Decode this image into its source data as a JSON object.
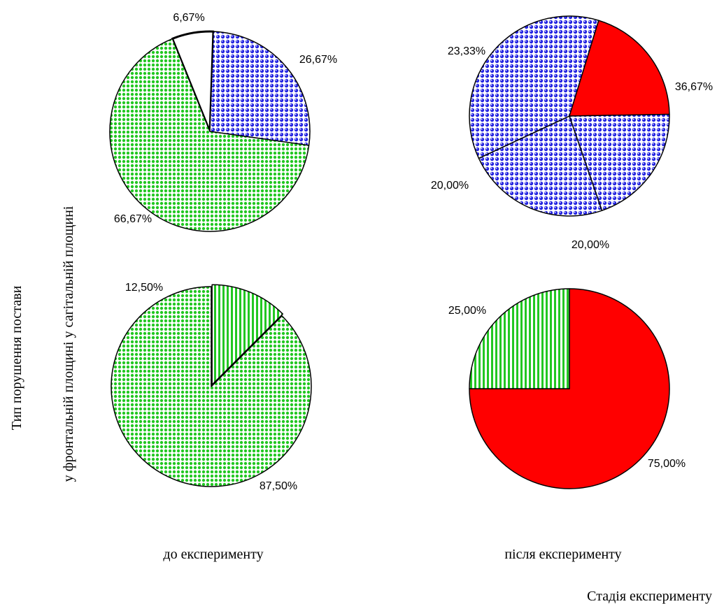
{
  "chart_data": {
    "type": "pie",
    "x_axis_label": "Стадія експерименту",
    "y_axis_labels": [
      "Тип порушення постави",
      "у фронтальній площині   у сагітальній площині"
    ],
    "stage_labels": [
      "до експерименту",
      "після експерименту"
    ],
    "patterns": {
      "green-dots": "#22c722",
      "blue-dots": "#2222e0",
      "red": "#ff0000",
      "green-stripes": "#22c722"
    },
    "charts": [
      {
        "name": "sagittal-before",
        "stage": "до експерименту",
        "plane": "у сагітальній площині",
        "slices": [
          {
            "label": "6,67%",
            "value": 6.67,
            "fill": "none"
          },
          {
            "label": "26,67%",
            "value": 26.67,
            "fill": "blue-dots"
          },
          {
            "label": "66,67%",
            "value": 66.67,
            "fill": "green-dots"
          }
        ]
      },
      {
        "name": "sagittal-after",
        "stage": "після експерименту",
        "plane": "у сагітальній площині",
        "slices": [
          {
            "label": "23,33%",
            "value": 23.33,
            "fill": "blue-dots"
          },
          {
            "label": "36,67%",
            "value": 36.67,
            "fill": "blue-dots"
          },
          {
            "label": "20,00%",
            "value": 20.0,
            "fill": "red"
          },
          {
            "label": "20,00%",
            "value": 20.0,
            "fill": "blue-dots"
          }
        ]
      },
      {
        "name": "frontal-before",
        "stage": "до експерименту",
        "plane": "у фронтальній площині",
        "slices": [
          {
            "label": "87,50%",
            "value": 87.5,
            "fill": "green-dots"
          },
          {
            "label": "12,50%",
            "value": 12.5,
            "fill": "green-stripes"
          }
        ]
      },
      {
        "name": "frontal-after",
        "stage": "після експерименту",
        "plane": "у фронтальній площині",
        "slices": [
          {
            "label": "75,00%",
            "value": 75.0,
            "fill": "red"
          },
          {
            "label": "25,00%",
            "value": 25.0,
            "fill": "green-stripes"
          }
        ]
      }
    ]
  }
}
